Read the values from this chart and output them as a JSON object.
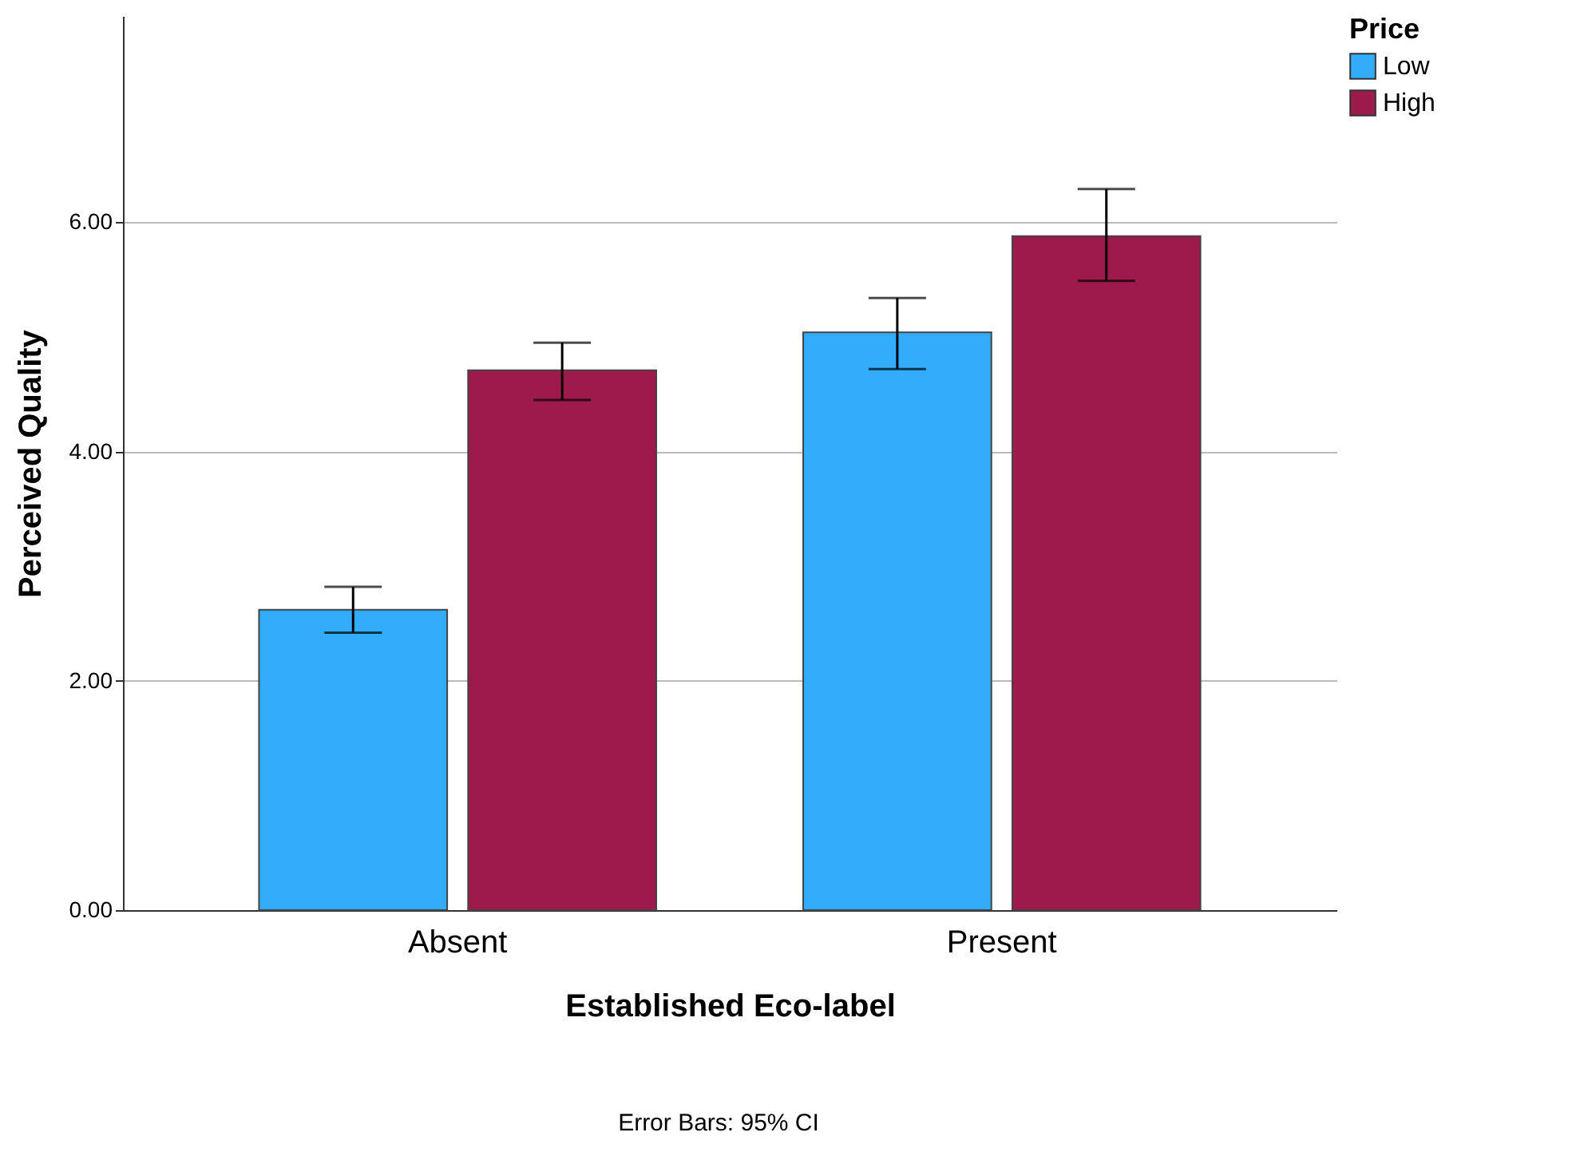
{
  "chart_data": {
    "type": "bar",
    "xlabel": "Established Eco-label",
    "ylabel": "Perceived Quality",
    "legend_title": "Price",
    "categories": [
      "Absent",
      "Present"
    ],
    "series": [
      {
        "name": "Low",
        "color": "#31adfc",
        "values": [
          2.62,
          5.04
        ],
        "errors": [
          [
            2.42,
            2.82
          ],
          [
            4.72,
            5.34
          ]
        ]
      },
      {
        "name": "High",
        "color": "#9e1a4c",
        "values": [
          4.71,
          5.88
        ],
        "errors": [
          [
            4.45,
            4.95
          ],
          [
            5.49,
            6.29
          ]
        ]
      }
    ],
    "ylim": [
      0,
      7.8
    ],
    "yticks": [
      {
        "value": 0,
        "label": "0.00"
      },
      {
        "value": 2,
        "label": "2.00"
      },
      {
        "value": 4,
        "label": "4.00"
      },
      {
        "value": 6,
        "label": "6.00"
      }
    ],
    "grid": "y",
    "legend": "right",
    "annotations": [
      "Error Bars: 95% CI"
    ]
  }
}
